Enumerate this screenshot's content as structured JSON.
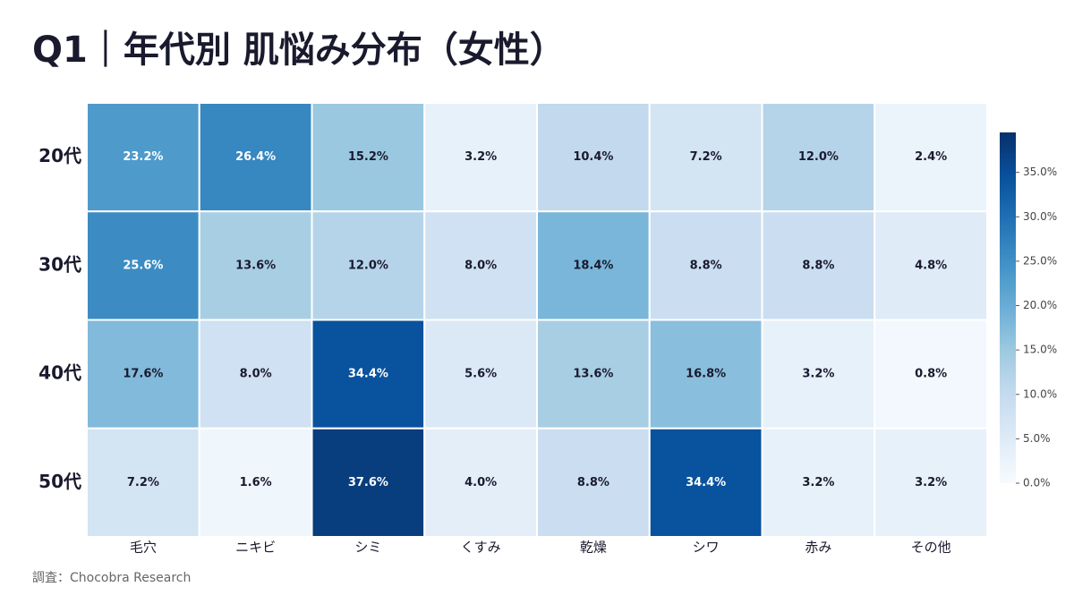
{
  "chart_data": {
    "type": "heatmap",
    "title": "Q1｜年代別 肌悩み分布（女性）",
    "source": "調査：Chocobra Research",
    "rows": [
      "20代",
      "30代",
      "40代",
      "50代"
    ],
    "categories": [
      "毛穴",
      "ニキビ",
      "シミ",
      "くすみ",
      "乾燥",
      "シワ",
      "赤み",
      "その他"
    ],
    "values": [
      [
        23.2,
        26.4,
        15.2,
        3.2,
        10.4,
        7.2,
        12.0,
        2.4
      ],
      [
        25.6,
        13.6,
        12.0,
        8.0,
        18.4,
        8.8,
        8.8,
        4.8
      ],
      [
        17.6,
        8.0,
        34.4,
        5.6,
        13.6,
        16.8,
        3.2,
        0.8
      ],
      [
        7.2,
        1.6,
        37.6,
        4.0,
        8.8,
        34.4,
        3.2,
        3.2
      ]
    ],
    "value_labels": [
      [
        "23.2%",
        "26.4%",
        "15.2%",
        "3.2%",
        "10.4%",
        "7.2%",
        "12.0%",
        "2.4%"
      ],
      [
        "25.6%",
        "13.6%",
        "12.0%",
        "8.0%",
        "18.4%",
        "8.8%",
        "8.8%",
        "4.8%"
      ],
      [
        "17.6%",
        "8.0%",
        "34.4%",
        "5.6%",
        "13.6%",
        "16.8%",
        "3.2%",
        "0.8%"
      ],
      [
        "7.2%",
        "1.6%",
        "37.6%",
        "4.0%",
        "8.8%",
        "34.4%",
        "3.2%",
        "3.2%"
      ]
    ],
    "colormap": "Blues",
    "clim": [
      0,
      39.5
    ],
    "cticks": [
      {
        "value": 0,
        "label": "0.0%"
      },
      {
        "value": 5,
        "label": "5.0%"
      },
      {
        "value": 10,
        "label": "10.0%"
      },
      {
        "value": 15,
        "label": "15.0%"
      },
      {
        "value": 20,
        "label": "20.0%"
      },
      {
        "value": 25,
        "label": "25.0%"
      },
      {
        "value": 30,
        "label": "30.0%"
      },
      {
        "value": 35,
        "label": "35.0%"
      }
    ]
  }
}
